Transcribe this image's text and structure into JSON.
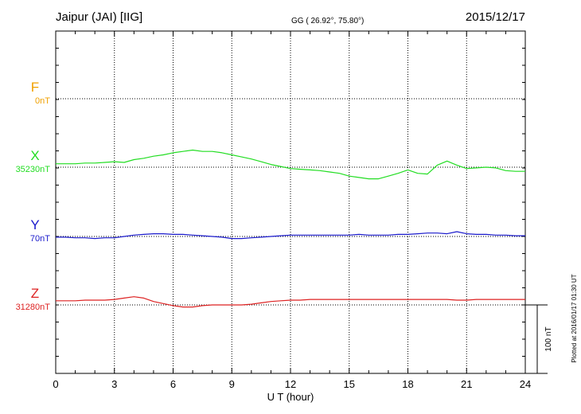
{
  "header": {
    "station": "Jaipur (JAI)  [IIG]",
    "coords": "GG ( 26.92°,  75.80°)",
    "date": "2015/12/17"
  },
  "footer": {
    "plotted": "Plotted at 2016/01/17 01:30 UT",
    "scale_label": "100 nT"
  },
  "chart_data": {
    "type": "line",
    "xlabel": "U T (hour)",
    "xlim": [
      0,
      24
    ],
    "x_ticks": [
      0,
      3,
      6,
      9,
      12,
      15,
      18,
      21,
      24
    ],
    "scale_bar_nT": 100,
    "components": [
      {
        "name": "F",
        "baseline_label": "0nT",
        "color": "#f0a000",
        "points": []
      },
      {
        "name": "X",
        "baseline_label": "35230nT",
        "color": "#22dd22",
        "points": [
          [
            0,
            5
          ],
          [
            0.5,
            5
          ],
          [
            1,
            5
          ],
          [
            1.5,
            6
          ],
          [
            2,
            6
          ],
          [
            2.5,
            7
          ],
          [
            3,
            8
          ],
          [
            3.5,
            7
          ],
          [
            4,
            11
          ],
          [
            4.5,
            13
          ],
          [
            5,
            16
          ],
          [
            5.5,
            18
          ],
          [
            6,
            21
          ],
          [
            6.5,
            23
          ],
          [
            7,
            25
          ],
          [
            7.5,
            23
          ],
          [
            8,
            23
          ],
          [
            8.5,
            21
          ],
          [
            9,
            18
          ],
          [
            9.5,
            15
          ],
          [
            10,
            12
          ],
          [
            10.5,
            8
          ],
          [
            11,
            4
          ],
          [
            11.5,
            1
          ],
          [
            12,
            -2
          ],
          [
            12.5,
            -3
          ],
          [
            13,
            -4
          ],
          [
            13.5,
            -5
          ],
          [
            14,
            -7
          ],
          [
            14.5,
            -9
          ],
          [
            15,
            -13
          ],
          [
            15.5,
            -15
          ],
          [
            16,
            -17
          ],
          [
            16.5,
            -17
          ],
          [
            17,
            -13
          ],
          [
            17.5,
            -9
          ],
          [
            18,
            -4
          ],
          [
            18.5,
            -9
          ],
          [
            19,
            -10
          ],
          [
            19.5,
            3
          ],
          [
            20,
            9
          ],
          [
            20.5,
            3
          ],
          [
            21,
            -2
          ],
          [
            21.5,
            -1
          ],
          [
            22,
            0
          ],
          [
            22.5,
            -1
          ],
          [
            23,
            -5
          ],
          [
            23.5,
            -6
          ],
          [
            24,
            -6
          ]
        ]
      },
      {
        "name": "Y",
        "baseline_label": "70nT",
        "color": "#1a1acc",
        "points": [
          [
            0,
            -1
          ],
          [
            0.5,
            -1
          ],
          [
            1,
            -2
          ],
          [
            1.5,
            -2
          ],
          [
            2,
            -3
          ],
          [
            2.5,
            -2
          ],
          [
            3,
            -2
          ],
          [
            3.5,
            0
          ],
          [
            4,
            2
          ],
          [
            4.5,
            3
          ],
          [
            5,
            4
          ],
          [
            5.5,
            4
          ],
          [
            6,
            3
          ],
          [
            6.5,
            3
          ],
          [
            7,
            2
          ],
          [
            7.5,
            1
          ],
          [
            8,
            0
          ],
          [
            8.5,
            -1
          ],
          [
            9,
            -3
          ],
          [
            9.5,
            -3
          ],
          [
            10,
            -2
          ],
          [
            10.5,
            -1
          ],
          [
            11,
            0
          ],
          [
            11.5,
            1
          ],
          [
            12,
            2
          ],
          [
            12.5,
            2
          ],
          [
            13,
            2
          ],
          [
            13.5,
            2
          ],
          [
            14,
            2
          ],
          [
            14.5,
            2
          ],
          [
            15,
            2
          ],
          [
            15.5,
            3
          ],
          [
            16,
            2
          ],
          [
            16.5,
            2
          ],
          [
            17,
            2
          ],
          [
            17.5,
            3
          ],
          [
            18,
            3
          ],
          [
            18.5,
            4
          ],
          [
            19,
            5
          ],
          [
            19.5,
            5
          ],
          [
            20,
            4
          ],
          [
            20.5,
            7
          ],
          [
            21,
            4
          ],
          [
            21.5,
            3
          ],
          [
            22,
            3
          ],
          [
            22.5,
            2
          ],
          [
            23,
            2
          ],
          [
            23.5,
            1
          ],
          [
            24,
            1
          ]
        ]
      },
      {
        "name": "Z",
        "baseline_label": "31280nT",
        "color": "#dd2222",
        "points": [
          [
            0,
            6
          ],
          [
            0.5,
            6
          ],
          [
            1,
            6
          ],
          [
            1.5,
            7
          ],
          [
            2,
            7
          ],
          [
            2.5,
            7
          ],
          [
            3,
            8
          ],
          [
            3.5,
            10
          ],
          [
            4,
            12
          ],
          [
            4.5,
            10
          ],
          [
            5,
            5
          ],
          [
            5.5,
            2
          ],
          [
            6,
            -1
          ],
          [
            6.5,
            -3
          ],
          [
            7,
            -3
          ],
          [
            7.5,
            -1
          ],
          [
            8,
            0
          ],
          [
            8.5,
            0
          ],
          [
            9,
            0
          ],
          [
            9.5,
            0
          ],
          [
            10,
            1
          ],
          [
            10.5,
            3
          ],
          [
            11,
            5
          ],
          [
            11.5,
            6
          ],
          [
            12,
            7
          ],
          [
            12.5,
            7
          ],
          [
            13,
            8
          ],
          [
            13.5,
            8
          ],
          [
            14,
            8
          ],
          [
            14.5,
            8
          ],
          [
            15,
            8
          ],
          [
            15.5,
            8
          ],
          [
            16,
            8
          ],
          [
            16.5,
            8
          ],
          [
            17,
            8
          ],
          [
            17.5,
            8
          ],
          [
            18,
            8
          ],
          [
            18.5,
            8
          ],
          [
            19,
            8
          ],
          [
            19.5,
            8
          ],
          [
            20,
            8
          ],
          [
            20.5,
            7
          ],
          [
            21,
            7
          ],
          [
            21.5,
            8
          ],
          [
            22,
            8
          ],
          [
            22.5,
            8
          ],
          [
            23,
            8
          ],
          [
            23.5,
            8
          ],
          [
            24,
            8
          ]
        ]
      }
    ]
  }
}
